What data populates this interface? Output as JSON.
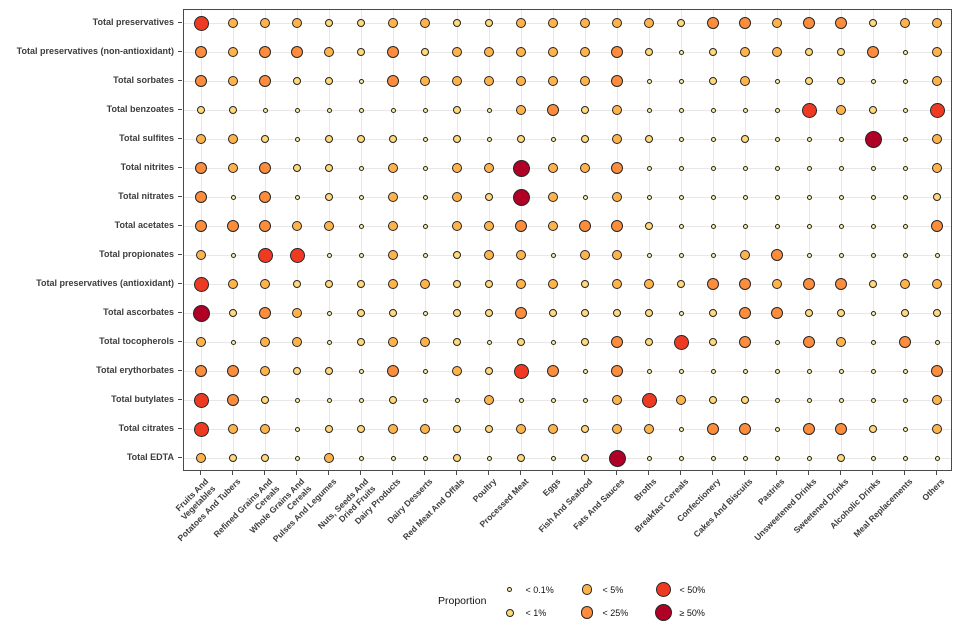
{
  "chart_data": {
    "type": "bubble-matrix",
    "title": "",
    "legend_title": "Proportion",
    "legend_position": "bottom-center",
    "grid": true,
    "size_categories": [
      {
        "label": "< 0.1%",
        "color": "#FDF0A2",
        "diameter": 5
      },
      {
        "label": "< 1%",
        "color": "#FED976",
        "diameter": 8
      },
      {
        "label": "< 5%",
        "color": "#FEB24C",
        "diameter": 10.5
      },
      {
        "label": "< 25%",
        "color": "#FD8D3C",
        "diameter": 12.5
      },
      {
        "label": "< 50%",
        "color": "#EE3A23",
        "diameter": 15
      },
      {
        "label": "≥ 50%",
        "color": "#B10026",
        "diameter": 17
      }
    ],
    "rows": [
      "Total preservatives",
      "Total preservatives (non-antioxidant)",
      "Total sorbates",
      "Total benzoates",
      "Total sulfites",
      "Total nitrites",
      "Total nitrates",
      "Total acetates",
      "Total propionates",
      "Total preservatives (antioxidant)",
      "Total ascorbates",
      "Total tocopherols",
      "Total erythorbates",
      "Total butylates",
      "Total citrates",
      "Total EDTA"
    ],
    "columns": [
      "Fruits And\nVegetables",
      "Potatoes And Tubers",
      "Refined Grains And\nCereals",
      "Whole Grains And\nCereals",
      "Pulses And Legumes",
      "Nuts, Seeds And\nDried Fruits",
      "Dairy Products",
      "Dairy Desserts",
      "Red Meat And Offals",
      "Poultry",
      "Processed Meat",
      "Eggs",
      "Fish And Seafood",
      "Fats And Sauces",
      "Broths",
      "Breakfast Cereals",
      "Confectionery",
      "Cakes And Biscuits",
      "Pastries",
      "Unsweetened Drinks",
      "Sweetened Drinks",
      "Alcoholic Drinks",
      "Meal Replacements",
      "Others"
    ],
    "values": [
      [
        4,
        2,
        2,
        2,
        1,
        1,
        2,
        2,
        1,
        1,
        2,
        2,
        2,
        2,
        2,
        1,
        3,
        3,
        2,
        3,
        3,
        1,
        2,
        2
      ],
      [
        3,
        2,
        3,
        3,
        2,
        1,
        3,
        1,
        2,
        2,
        2,
        2,
        2,
        3,
        1,
        0,
        1,
        2,
        2,
        1,
        1,
        3,
        0,
        2
      ],
      [
        3,
        2,
        3,
        1,
        1,
        0,
        3,
        2,
        2,
        2,
        2,
        2,
        2,
        3,
        0,
        0,
        1,
        2,
        0,
        1,
        1,
        0,
        0,
        2
      ],
      [
        1,
        1,
        0,
        0,
        0,
        0,
        0,
        0,
        1,
        0,
        2,
        3,
        1,
        2,
        0,
        0,
        0,
        0,
        0,
        4,
        2,
        1,
        0,
        4
      ],
      [
        2,
        2,
        1,
        0,
        1,
        1,
        1,
        0,
        1,
        0,
        1,
        0,
        1,
        2,
        1,
        0,
        0,
        1,
        0,
        0,
        0,
        5,
        0,
        2
      ],
      [
        3,
        2,
        3,
        1,
        1,
        0,
        2,
        0,
        2,
        2,
        5,
        2,
        2,
        3,
        0,
        0,
        0,
        0,
        0,
        0,
        0,
        0,
        0,
        2
      ],
      [
        3,
        0,
        3,
        0,
        1,
        0,
        2,
        0,
        2,
        1,
        5,
        2,
        0,
        2,
        0,
        0,
        0,
        0,
        0,
        0,
        0,
        0,
        0,
        1
      ],
      [
        3,
        3,
        3,
        2,
        2,
        0,
        2,
        0,
        2,
        2,
        3,
        2,
        3,
        3,
        1,
        0,
        0,
        0,
        0,
        0,
        0,
        0,
        0,
        3
      ],
      [
        2,
        0,
        4,
        4,
        0,
        0,
        2,
        0,
        1,
        2,
        2,
        0,
        2,
        2,
        0,
        0,
        0,
        2,
        3,
        0,
        0,
        0,
        0,
        0
      ],
      [
        4,
        2,
        2,
        1,
        1,
        1,
        2,
        2,
        1,
        1,
        2,
        2,
        1,
        2,
        2,
        1,
        3,
        3,
        2,
        3,
        3,
        1,
        2,
        2
      ],
      [
        5,
        1,
        3,
        2,
        0,
        1,
        1,
        0,
        1,
        1,
        3,
        1,
        1,
        1,
        1,
        0,
        1,
        3,
        3,
        1,
        1,
        0,
        1,
        1
      ],
      [
        2,
        0,
        2,
        2,
        0,
        1,
        2,
        2,
        1,
        0,
        1,
        0,
        1,
        3,
        1,
        4,
        1,
        3,
        0,
        3,
        2,
        0,
        3,
        0
      ],
      [
        3,
        3,
        2,
        1,
        1,
        0,
        3,
        0,
        2,
        1,
        4,
        3,
        0,
        3,
        0,
        0,
        0,
        0,
        0,
        0,
        0,
        0,
        0,
        3
      ],
      [
        4,
        3,
        1,
        0,
        0,
        0,
        1,
        0,
        0,
        2,
        0,
        0,
        0,
        2,
        4,
        2,
        1,
        1,
        0,
        0,
        0,
        0,
        0,
        2
      ],
      [
        4,
        2,
        2,
        0,
        1,
        1,
        2,
        2,
        1,
        1,
        2,
        2,
        1,
        2,
        2,
        0,
        3,
        3,
        0,
        3,
        3,
        1,
        0,
        2
      ],
      [
        2,
        1,
        1,
        0,
        2,
        0,
        0,
        0,
        1,
        0,
        1,
        0,
        1,
        5,
        0,
        0,
        0,
        0,
        0,
        0,
        1,
        0,
        0,
        0
      ]
    ],
    "legend_columns_order": [
      [
        0,
        1
      ],
      [
        2,
        3
      ],
      [
        4,
        5
      ]
    ]
  }
}
